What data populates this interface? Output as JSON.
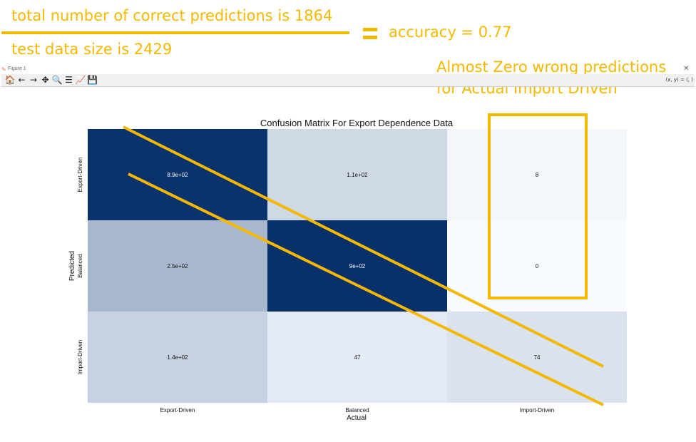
{
  "annotations": {
    "correct_predictions": "total number of correct predictions is 1864",
    "test_size": "test data size is 2429",
    "accuracy": "accuracy = 0.77",
    "zero_wrong_line1": "Almost Zero wrong predictions",
    "zero_wrong_line2": "for Actual Import Driven",
    "highlight_color": "#f5b800"
  },
  "window": {
    "title": "Figure 1",
    "coord_readout": "(x, y) = (, )",
    "toolbar": [
      {
        "name": "home-icon",
        "glyph": "🏠"
      },
      {
        "name": "back-icon",
        "glyph": "←"
      },
      {
        "name": "forward-icon",
        "glyph": "→"
      },
      {
        "name": "pan-icon",
        "glyph": "✥"
      },
      {
        "name": "zoom-icon",
        "glyph": "🔍"
      },
      {
        "name": "configure-subplots-icon",
        "glyph": "☰"
      },
      {
        "name": "edit-axis-icon",
        "glyph": "📈"
      },
      {
        "name": "save-icon",
        "glyph": "💾"
      }
    ]
  },
  "chart_data": {
    "type": "heatmap",
    "title": "Confusion Matrix For Export Dependence Data",
    "xlabel": "Actual",
    "ylabel": "Predicted",
    "x_categories": [
      "Export-Driven",
      "Balanced",
      "Import-Driven"
    ],
    "y_categories": [
      "Export-Driven",
      "Balanced",
      "Import-Driven"
    ],
    "values": [
      [
        890,
        110,
        8
      ],
      [
        250,
        900,
        0
      ],
      [
        140,
        47,
        74
      ]
    ],
    "cell_labels": [
      [
        "8.9e+02",
        "1.1e+02",
        "8"
      ],
      [
        "2.5e+02",
        "9e+02",
        "0"
      ],
      [
        "1.4e+02",
        "47",
        "74"
      ]
    ],
    "colormap": "Blues",
    "colorbar": false,
    "grid": false
  }
}
